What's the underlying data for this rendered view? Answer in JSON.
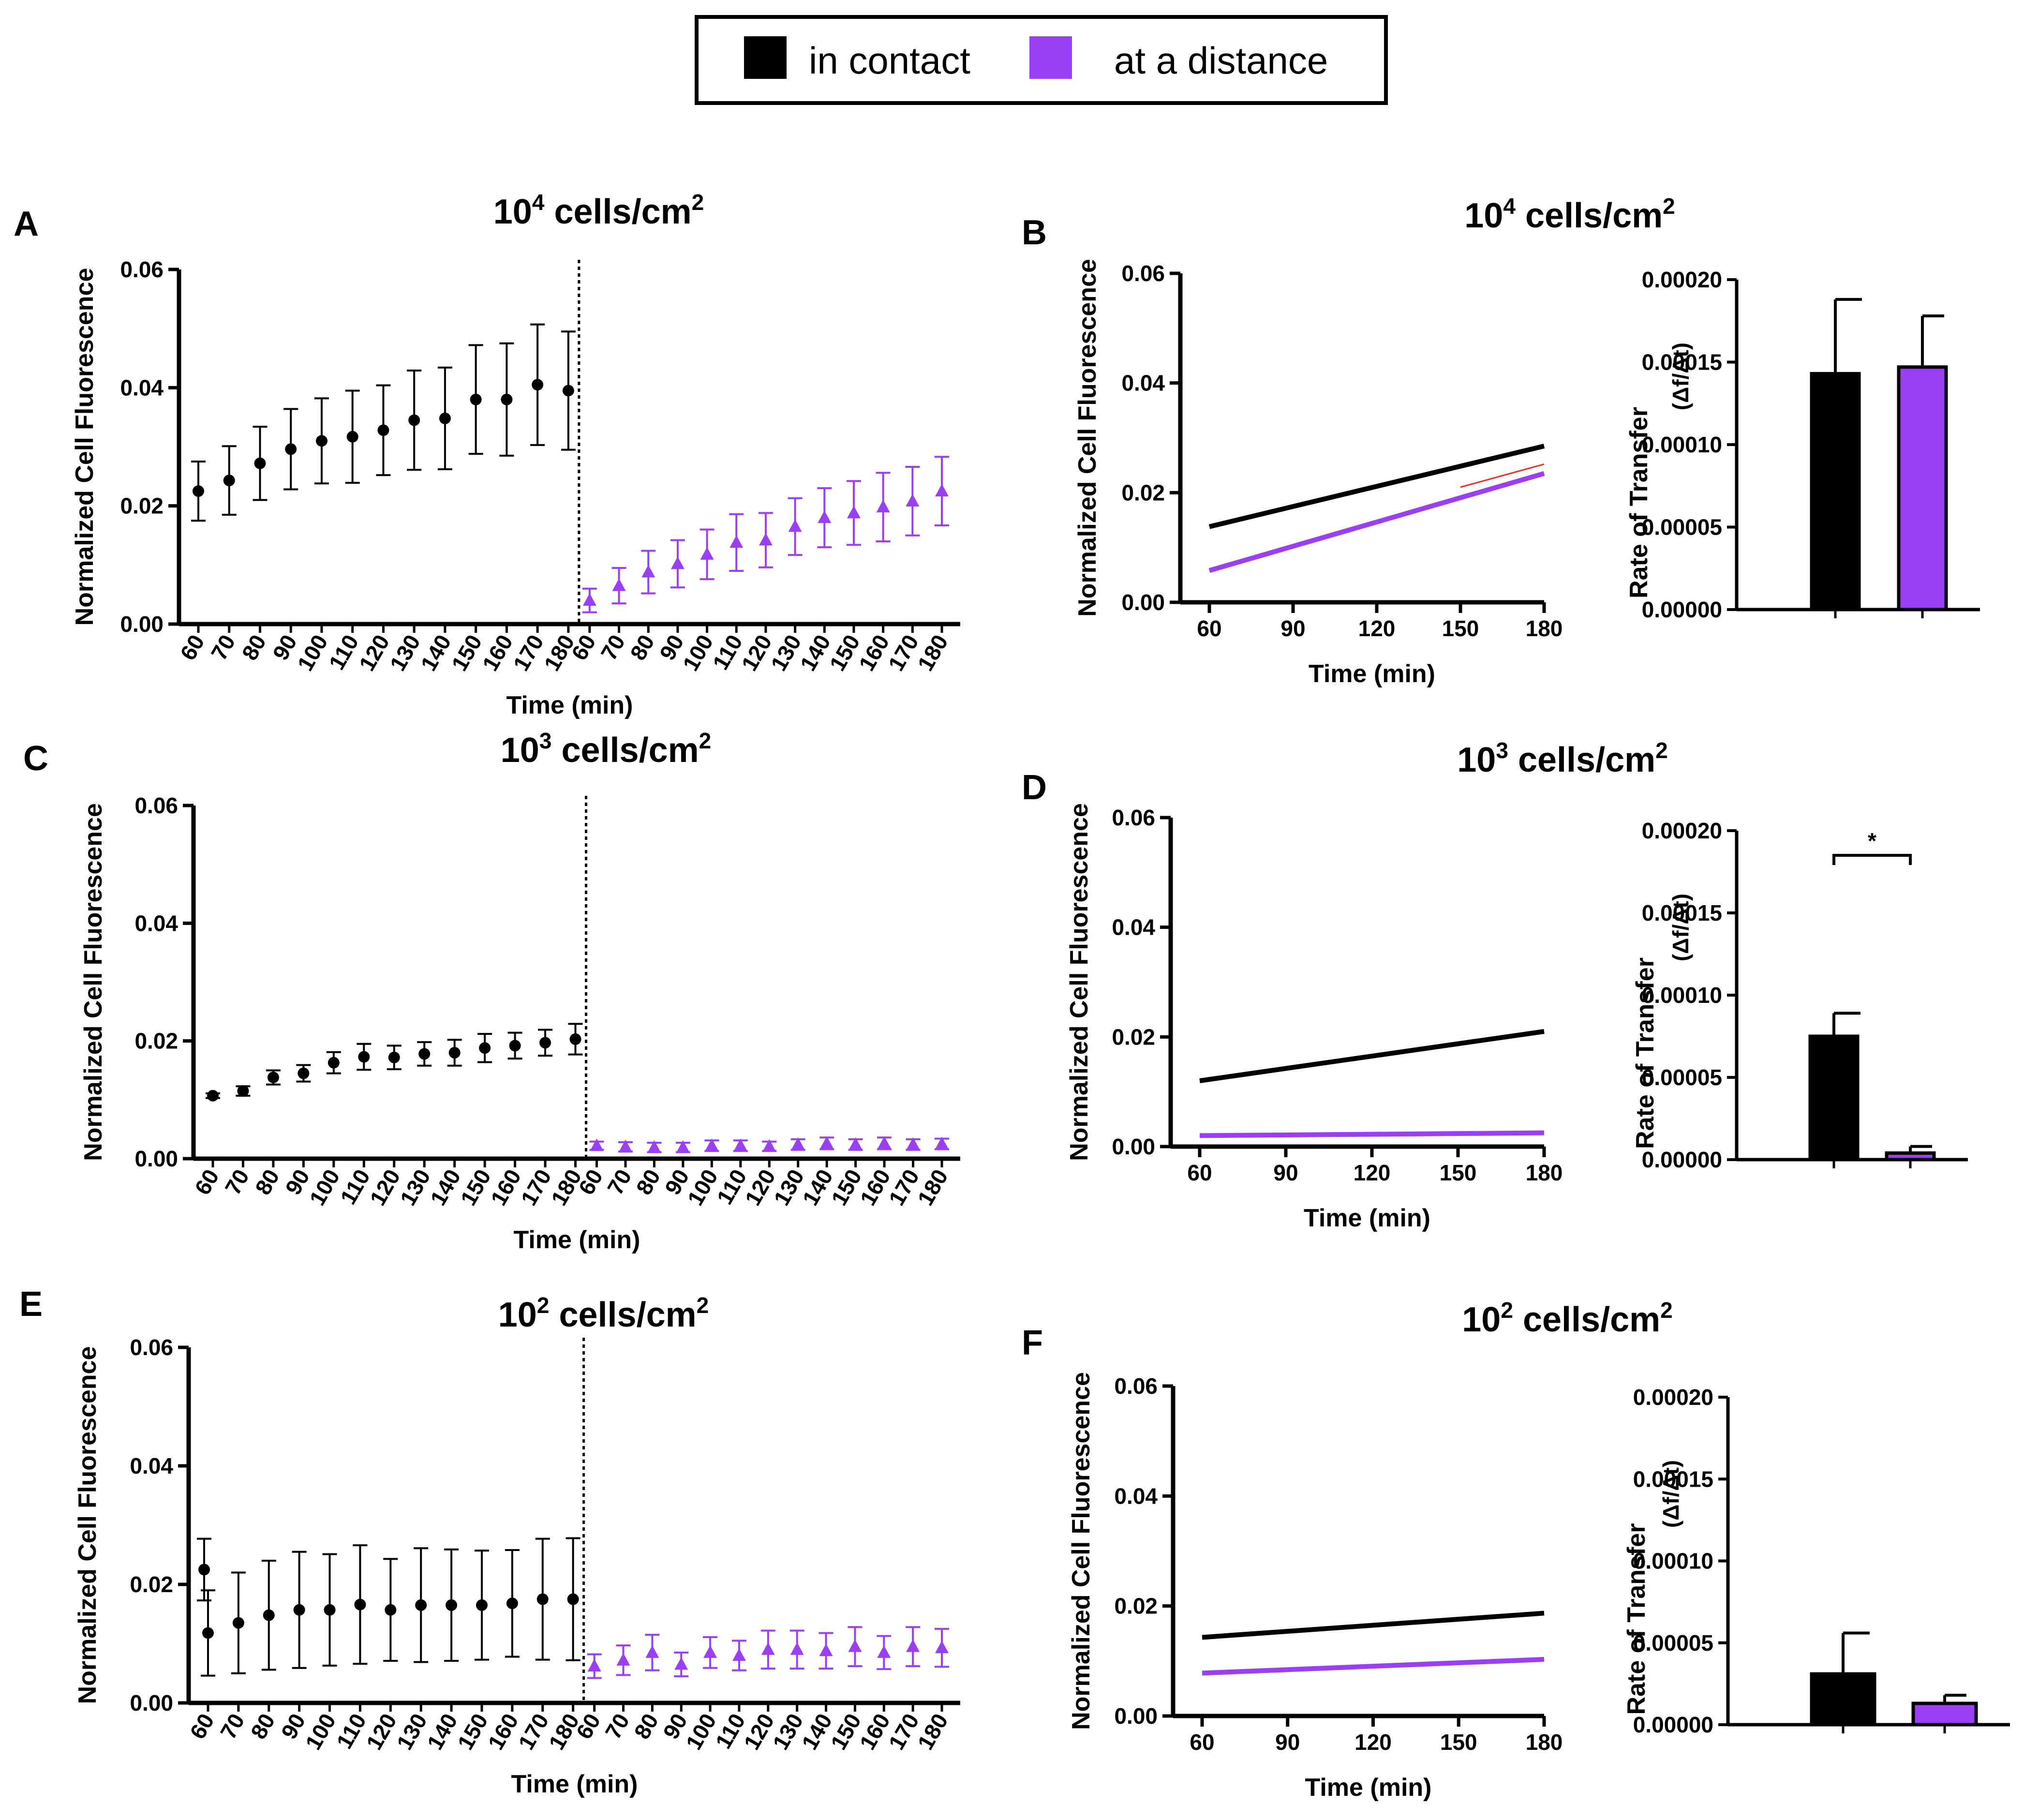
{
  "legend": {
    "items": [
      {
        "label": "in contact",
        "color": "#000000"
      },
      {
        "label": "at a distance",
        "color": "#9b3ff5"
      }
    ]
  },
  "colors": {
    "contact": "#000000",
    "distance": "#9b3ff5",
    "fit_highlight": "#e8321f"
  },
  "chart_data": [
    {
      "id": "A",
      "panel_label": "A",
      "type": "scatter",
      "title": "10",
      "title_sup": "4",
      "title_tail": " cells/cm",
      "xlabel": "Time (min)",
      "ylabel": "Normalized Cell Fluorescence",
      "ylim": [
        0,
        0.06
      ],
      "yticks": [
        "0.00",
        "0.02",
        "0.04",
        "0.06"
      ],
      "x": [
        "60",
        "70",
        "80",
        "90",
        "100",
        "110",
        "120",
        "130",
        "140",
        "150",
        "160",
        "170",
        "180"
      ],
      "series": [
        {
          "name": "in contact",
          "marker": "circle",
          "mean": [
            0.0225,
            0.0243,
            0.0272,
            0.0296,
            0.031,
            0.0317,
            0.0328,
            0.0345,
            0.0348,
            0.038,
            0.038,
            0.0405,
            0.0395
          ],
          "err": [
            0.005,
            0.0058,
            0.0062,
            0.0068,
            0.0072,
            0.0078,
            0.0076,
            0.0084,
            0.0086,
            0.0092,
            0.0095,
            0.0102,
            0.01
          ]
        },
        {
          "name": "at a distance",
          "marker": "triangle",
          "mean": [
            0.004,
            0.0065,
            0.0088,
            0.0102,
            0.0118,
            0.0138,
            0.0142,
            0.0165,
            0.018,
            0.0188,
            0.0198,
            0.0208,
            0.0225
          ],
          "err": [
            0.002,
            0.003,
            0.0036,
            0.004,
            0.0042,
            0.0048,
            0.0046,
            0.0048,
            0.005,
            0.0054,
            0.0058,
            0.0058,
            0.0058
          ]
        }
      ]
    },
    {
      "id": "B",
      "panel_label": "B",
      "type": "line",
      "title": "10",
      "title_sup": "4",
      "title_tail": " cells/cm",
      "xlabel": "Time (min)",
      "ylabel": "Normalized Cell Fluorescence",
      "xlim": [
        60,
        180
      ],
      "xticks": [
        60,
        90,
        120,
        150,
        180
      ],
      "ylim": [
        0,
        0.06
      ],
      "yticks": [
        "0.00",
        "0.02",
        "0.04",
        "0.06"
      ],
      "series": [
        {
          "name": "in contact",
          "x": [
            60,
            180
          ],
          "y": [
            0.0138,
            0.0285
          ]
        },
        {
          "name": "at a distance",
          "x": [
            60,
            180
          ],
          "y": [
            0.0058,
            0.0235
          ]
        },
        {
          "name": "fit (at a distance)",
          "x": [
            150,
            180
          ],
          "y": [
            0.021,
            0.0252
          ]
        }
      ]
    },
    {
      "id": "B-bar",
      "type": "bar",
      "ylabel": "Rate of Transfer",
      "ylabel_unit": "(Δf/Δt)",
      "ylim": [
        0,
        0.0002
      ],
      "yticks": [
        "0.00000",
        "0.00005",
        "0.00010",
        "0.00015",
        "0.00020"
      ],
      "categories": [
        "in contact",
        "at a distance"
      ],
      "values": [
        0.000143,
        0.000147
      ],
      "err": [
        4.5e-05,
        3.1e-05
      ],
      "significance": ""
    },
    {
      "id": "C",
      "panel_label": "C",
      "type": "scatter",
      "title": "10",
      "title_sup": "3",
      "title_tail": " cells/cm",
      "xlabel": "Time (min)",
      "ylabel": "Normalized Cell Fluorescence",
      "ylim": [
        0,
        0.06
      ],
      "yticks": [
        "0.00",
        "0.02",
        "0.04",
        "0.06"
      ],
      "x": [
        "60",
        "70",
        "80",
        "90",
        "100",
        "110",
        "120",
        "130",
        "140",
        "150",
        "160",
        "170",
        "180"
      ],
      "series": [
        {
          "name": "in contact",
          "marker": "circle",
          "mean": [
            0.0107,
            0.0115,
            0.0138,
            0.0145,
            0.0163,
            0.0173,
            0.0172,
            0.0178,
            0.018,
            0.0188,
            0.0192,
            0.0197,
            0.0203
          ],
          "err": [
            0.0004,
            0.0008,
            0.0012,
            0.0014,
            0.0018,
            0.0022,
            0.002,
            0.002,
            0.0022,
            0.0024,
            0.0022,
            0.0022,
            0.0026
          ]
        },
        {
          "name": "at a distance",
          "marker": "triangle",
          "mean": [
            0.0022,
            0.002,
            0.0019,
            0.0019,
            0.0022,
            0.0022,
            0.0021,
            0.0024,
            0.0026,
            0.0024,
            0.0026,
            0.0024,
            0.0025
          ],
          "err": [
            0.0007,
            0.0008,
            0.0008,
            0.0008,
            0.0009,
            0.0009,
            0.0008,
            0.0009,
            0.001,
            0.0009,
            0.001,
            0.0009,
            0.0009
          ]
        }
      ]
    },
    {
      "id": "D",
      "panel_label": "D",
      "type": "line",
      "title": "10",
      "title_sup": "3",
      "title_tail": " cells/cm",
      "xlabel": "Time (min)",
      "ylabel": "Normalized Cell Fluorescence",
      "xlim": [
        60,
        180
      ],
      "xticks": [
        60,
        90,
        120,
        150,
        180
      ],
      "ylim": [
        0,
        0.06
      ],
      "yticks": [
        "0.00",
        "0.02",
        "0.04",
        "0.06"
      ],
      "series": [
        {
          "name": "in contact",
          "x": [
            60,
            180
          ],
          "y": [
            0.012,
            0.021
          ]
        },
        {
          "name": "at a distance",
          "x": [
            60,
            180
          ],
          "y": [
            0.002,
            0.0025
          ]
        }
      ]
    },
    {
      "id": "D-bar",
      "type": "bar",
      "ylabel": "Rate of Transfer",
      "ylabel_unit": "(Δf/Δt)",
      "ylim": [
        0,
        0.0002
      ],
      "yticks": [
        "0.00000",
        "0.00005",
        "0.00010",
        "0.00015",
        "0.00020"
      ],
      "categories": [
        "in contact",
        "at a distance"
      ],
      "values": [
        7.5e-05,
        4e-06
      ],
      "err": [
        1.4e-05,
        4e-06
      ],
      "significance": "*"
    },
    {
      "id": "E",
      "panel_label": "E",
      "type": "scatter",
      "title": "10",
      "title_sup": "2",
      "title_tail": " cells/cm",
      "xlabel": "Time (min)",
      "ylabel": "Normalized Cell Fluorescence",
      "ylim": [
        0,
        0.06
      ],
      "yticks": [
        "0.00",
        "0.02",
        "0.04",
        "0.06"
      ],
      "x": [
        "60",
        "70",
        "80",
        "90",
        "100",
        "110",
        "120",
        "130",
        "140",
        "150",
        "160",
        "170",
        "180"
      ],
      "series": [
        {
          "name": "in contact",
          "marker": "circle",
          "mean": [
            0.0118,
            0.0135,
            0.0148,
            0.0157,
            0.0157,
            0.0166,
            0.0157,
            0.0165,
            0.0165,
            0.0165,
            0.0168,
            0.0175,
            0.0175
          ],
          "err": [
            0.0072,
            0.0085,
            0.0092,
            0.0098,
            0.0094,
            0.01,
            0.0086,
            0.0096,
            0.0094,
            0.0092,
            0.009,
            0.0102,
            0.0103
          ]
        },
        {
          "name": "at a distance",
          "marker": "triangle",
          "mean": [
            0.0062,
            0.0072,
            0.0085,
            0.0065,
            0.0085,
            0.008,
            0.009,
            0.009,
            0.0088,
            0.0095,
            0.0085,
            0.0095,
            0.0093
          ],
          "err": [
            0.002,
            0.0025,
            0.003,
            0.002,
            0.0026,
            0.0025,
            0.0032,
            0.0032,
            0.003,
            0.0033,
            0.0028,
            0.0033,
            0.0032
          ]
        }
      ],
      "extra_point": {
        "x_index": 0,
        "mean": 0.0225,
        "err": 0.0052
      }
    },
    {
      "id": "F",
      "panel_label": "F",
      "type": "line",
      "title": "10",
      "title_sup": "2",
      "title_tail": " cells/cm",
      "xlabel": "Time (min)",
      "ylabel": "Normalized Cell Fluorescence",
      "xlim": [
        60,
        180
      ],
      "xticks": [
        60,
        90,
        120,
        150,
        180
      ],
      "ylim": [
        0,
        0.06
      ],
      "yticks": [
        "0.00",
        "0.02",
        "0.04",
        "0.06"
      ],
      "series": [
        {
          "name": "in contact",
          "x": [
            60,
            180
          ],
          "y": [
            0.0143,
            0.0187
          ]
        },
        {
          "name": "at a distance",
          "x": [
            60,
            180
          ],
          "y": [
            0.0078,
            0.0103
          ]
        }
      ]
    },
    {
      "id": "F-bar",
      "type": "bar",
      "ylabel": "Rate of Transfer",
      "ylabel_unit": "(Δf/Δt)",
      "ylim": [
        0,
        0.0002
      ],
      "yticks": [
        "0.00000",
        "0.00005",
        "0.00010",
        "0.00015",
        "0.00020"
      ],
      "categories": [
        "in contact",
        "at a distance"
      ],
      "values": [
        3.1e-05,
        1.3e-05
      ],
      "err": [
        2.5e-05,
        5e-06
      ],
      "significance": ""
    }
  ]
}
